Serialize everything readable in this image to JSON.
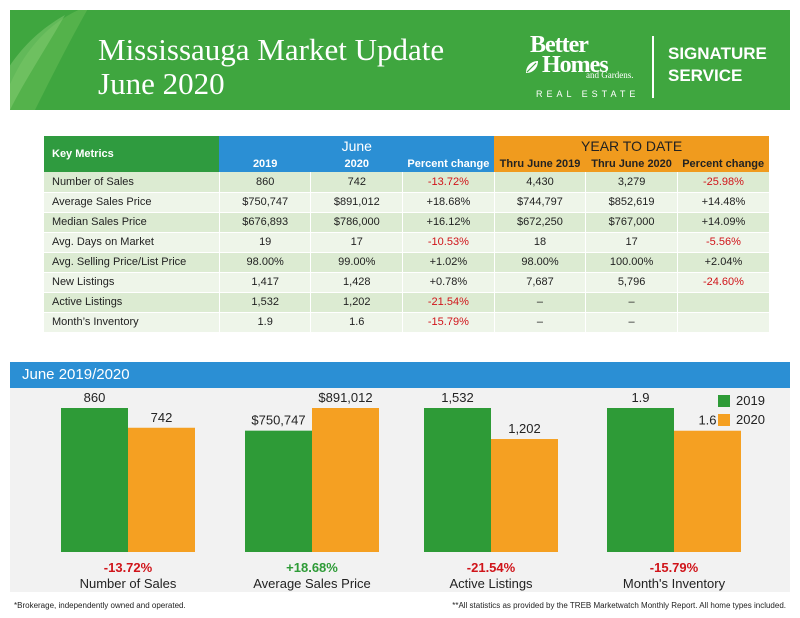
{
  "header": {
    "title_line1": "Mississauga Market Update",
    "title_line2": "June 2020",
    "logo_better": "Better",
    "logo_homes": "Homes",
    "logo_gardens": "and Gardens.",
    "logo_real_estate": "REAL ESTATE",
    "signature_line1": "SIGNATURE",
    "signature_line2": "SERVICE",
    "brand_green": "#3fa63f"
  },
  "table": {
    "key_label": "Key Metrics",
    "june_label": "June",
    "ytd_label": "YEAR TO DATE",
    "columns": [
      "2019",
      "2020",
      "Percent change",
      "Thru June 2019",
      "Thru June 2020",
      "Percent change"
    ],
    "rows": [
      {
        "label": "Number of Sales",
        "cells": [
          "860",
          "742",
          "-13.72%",
          "4,430",
          "3,279",
          "-25.98%"
        ]
      },
      {
        "label": "Average Sales Price",
        "cells": [
          "$750,747",
          "$891,012",
          "+18.68%",
          "$744,797",
          "$852,619",
          "+14.48%"
        ]
      },
      {
        "label": "Median Sales Price",
        "cells": [
          "$676,893",
          "$786,000",
          "+16.12%",
          "$672,250",
          "$767,000",
          "+14.09%"
        ]
      },
      {
        "label": "Avg. Days on Market",
        "cells": [
          "19",
          "17",
          "-10.53%",
          "18",
          "17",
          "-5.56%"
        ]
      },
      {
        "label": "Avg. Selling Price/List Price",
        "cells": [
          "98.00%",
          "99.00%",
          "+1.02%",
          "98.00%",
          "100.00%",
          "+2.04%"
        ]
      },
      {
        "label": "New Listings",
        "cells": [
          "1,417",
          "1,428",
          "+0.78%",
          "7,687",
          "5,796",
          "-24.60%"
        ]
      },
      {
        "label": "Active Listings",
        "cells": [
          "1,532",
          "1,202",
          "-21.54%",
          "–",
          "–",
          ""
        ]
      },
      {
        "label": "Month’s Inventory",
        "cells": [
          "1.9",
          "1.6",
          "-15.79%",
          "–",
          "–",
          ""
        ]
      }
    ],
    "negative_color": "#d0141a"
  },
  "chart_section": {
    "band_title": "June 2019/2020"
  },
  "chart_data": {
    "type": "bar",
    "title": "June 2019/2020",
    "legend_position": "top-right",
    "series_colors": [
      "#2e9b37",
      "#f5a022"
    ],
    "series": [
      {
        "name": "2019"
      },
      {
        "name": "2020"
      }
    ],
    "groups": [
      {
        "category": "Number of Sales",
        "change": "-13.72%",
        "change_color": "#d0141a",
        "values": [
          860,
          742
        ],
        "labels": [
          "860",
          "742"
        ]
      },
      {
        "category": "Average Sales Price",
        "change": "+18.68%",
        "change_color": "#2e9b37",
        "values": [
          750747,
          891012
        ],
        "labels": [
          "$750,747",
          "$891,012"
        ]
      },
      {
        "category": "Active Listings",
        "change": "-21.54%",
        "change_color": "#d0141a",
        "values": [
          1532,
          1202
        ],
        "labels": [
          "1,532",
          "1,202"
        ]
      },
      {
        "category": "Month's Inventory",
        "change": "-15.79%",
        "change_color": "#d0141a",
        "values": [
          1.9,
          1.6
        ],
        "labels": [
          "1.9",
          "1.6"
        ]
      }
    ]
  },
  "footer": {
    "left": "*Brokerage, independently owned and operated.",
    "right": "**All statistics as provided by the TREB Marketwatch Monthly Report. All home types included."
  }
}
